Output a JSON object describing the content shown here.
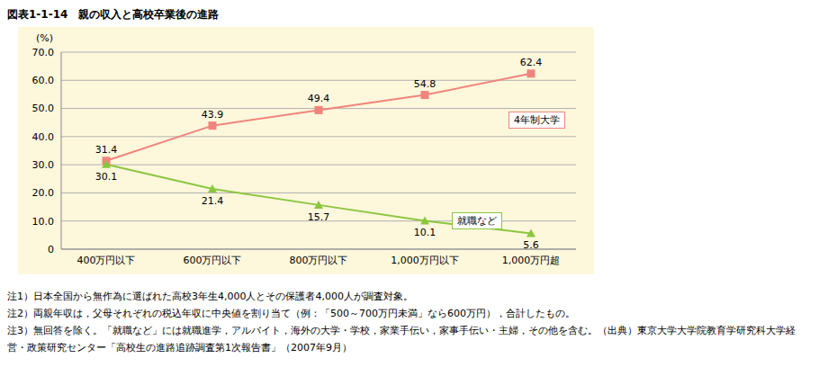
{
  "title": "図表1-1-14　親の収入と高校卒業後の進路",
  "notes": [
    "注1）日本全国から無作為に選ばれた高校3年生4,000人とその保護者4,000人が調査対象。",
    "注2）両親年収は，父母それぞれの税込年収に中央値を割り当て（例：「500～700万円未満」なら600万円），合計したもの。",
    "注3）無回答を除く。「就職など」には就職進学，アルバイト，海外の大学・学校，家業手伝い，家事手伝い・主婦，その他を含む。（出典）東京大学大学院教育学研究科大学経営・政策研究センター「高校生の進路追跡調査第1次報告書」（2007年9月）"
  ],
  "chart_data": {
    "type": "line",
    "y_label": "(%)",
    "categories": [
      "400万円以下",
      "600万円以下",
      "800万円以下",
      "1,000万円以下",
      "1,000万円超"
    ],
    "series": [
      {
        "name": "4年制大学",
        "color": "#f0857d",
        "marker": "square",
        "values": [
          31.4,
          43.9,
          49.4,
          54.8,
          62.4
        ]
      },
      {
        "name": "就職など",
        "color": "#8cc63f",
        "marker": "triangle",
        "values": [
          30.1,
          21.4,
          15.7,
          10.1,
          5.6
        ]
      }
    ],
    "ylim": [
      0,
      70
    ],
    "yticks": [
      0,
      {
        "value": 10,
        "label": "10.0"
      },
      {
        "value": 20,
        "label": "20.0"
      },
      {
        "value": 30,
        "label": "30.0"
      },
      {
        "value": 40,
        "label": "40.0"
      },
      {
        "value": 50,
        "label": "50.0"
      },
      {
        "value": 60,
        "label": "60.0"
      },
      {
        "value": 70,
        "label": "70.0"
      }
    ],
    "grid": true,
    "data_labels": true
  }
}
